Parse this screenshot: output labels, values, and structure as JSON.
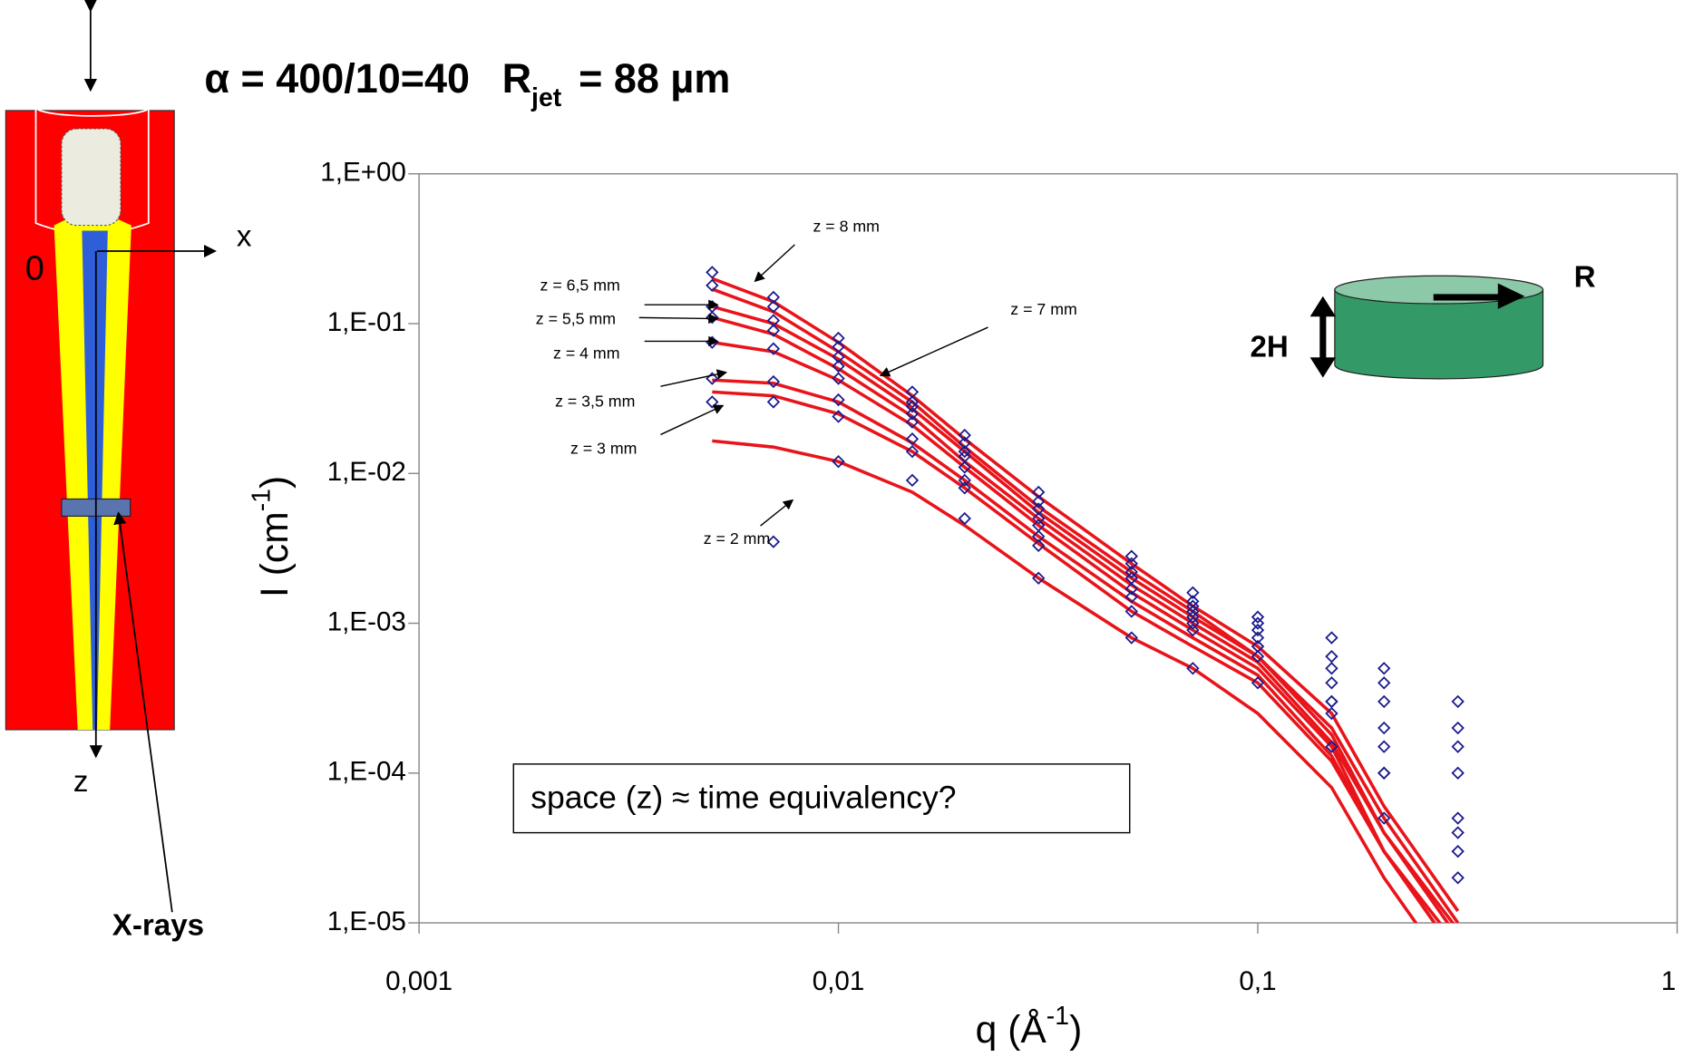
{
  "header": {
    "alpha": "α = 400/10=40",
    "r_symbol": "R",
    "r_subscript": "jet",
    "r_value": "= 88 µm"
  },
  "diagram": {
    "origin": "0",
    "x_axis": "x",
    "z_axis": "z",
    "beam": "X-rays"
  },
  "inset": {
    "radius": "R",
    "height": "2H"
  },
  "chart_data": {
    "type": "scatter",
    "y_label": {
      "text": "I (cm",
      "sup": "-1",
      "close": ")"
    },
    "x_label": {
      "text": "q (Å",
      "sup": "-1",
      "close": ")"
    },
    "note": "space (z) ≈ time equivalency?",
    "xscale": "log",
    "yscale": "log",
    "xlim": [
      0.001,
      1
    ],
    "ylim": [
      1e-05,
      1
    ],
    "xticks": [
      {
        "value": 0.001,
        "label": "0,001"
      },
      {
        "value": 0.01,
        "label": "0,01"
      },
      {
        "value": 0.1,
        "label": "0,1"
      },
      1
    ],
    "yticks": [
      {
        "value": 1e-05,
        "label": "1,E-05"
      },
      {
        "value": 0.0001,
        "label": "1,E-04"
      },
      {
        "value": 0.001,
        "label": "1,E-03"
      },
      {
        "value": 0.01,
        "label": "1,E-02"
      },
      {
        "value": 0.1,
        "label": "1,E-01"
      },
      {
        "value": 1,
        "label": "1,E+00"
      }
    ],
    "x": [
      0.005,
      0.007,
      0.01,
      0.015,
      0.02,
      0.03,
      0.05,
      0.07,
      0.1,
      0.15,
      0.2,
      0.3
    ],
    "data_color": "#1a1a8c",
    "fit_color": "#e8141a",
    "series": [
      {
        "name": "z = 8  mm",
        "values": [
          0.22,
          0.15,
          0.08,
          0.035,
          0.018,
          0.0075,
          0.0028,
          0.0016,
          0.0011,
          0.0008,
          0.0005,
          0.0003
        ],
        "fit": [
          0.2,
          0.14,
          0.075,
          0.033,
          0.017,
          0.007,
          0.0025,
          0.0013,
          0.0007,
          0.00025,
          6e-05,
          1.2e-05
        ]
      },
      {
        "name": "z = 7  mm",
        "values": [
          0.18,
          0.13,
          0.07,
          0.03,
          0.016,
          0.0065,
          0.0025,
          0.0014,
          0.001,
          0.0006,
          0.0004,
          0.0002
        ],
        "fit": [
          0.17,
          0.12,
          0.065,
          0.03,
          0.015,
          0.006,
          0.0022,
          0.0012,
          0.0006,
          0.0002,
          5e-05,
          1e-05
        ]
      },
      {
        "name": "z = 6,5  mm",
        "values": [
          0.13,
          0.105,
          0.06,
          0.028,
          0.014,
          0.0058,
          0.0022,
          0.0013,
          0.0009,
          0.0005,
          0.0003,
          0.00015
        ],
        "fit": [
          0.13,
          0.1,
          0.058,
          0.027,
          0.014,
          0.0055,
          0.002,
          0.0011,
          0.0006,
          0.00018,
          4e-05,
          9e-06
        ]
      },
      {
        "name": "z = 5,5 mm",
        "values": [
          0.11,
          0.09,
          0.052,
          0.025,
          0.013,
          0.005,
          0.002,
          0.0012,
          0.0008,
          0.0004,
          0.0002,
          0.0001
        ],
        "fit": [
          0.11,
          0.085,
          0.05,
          0.024,
          0.012,
          0.005,
          0.0018,
          0.001,
          0.00055,
          0.00016,
          4e-05,
          8e-06
        ]
      },
      {
        "name": "z = 4 mm",
        "values": [
          0.075,
          0.068,
          0.043,
          0.022,
          0.011,
          0.0045,
          0.0017,
          0.0011,
          0.0007,
          0.0003,
          0.00015,
          5e-05
        ],
        "fit": [
          0.075,
          0.065,
          0.042,
          0.021,
          0.011,
          0.0045,
          0.0016,
          0.0009,
          0.0005,
          0.00015,
          3e-05,
          7e-06
        ]
      },
      {
        "name": "z = 3,5 mm",
        "values": [
          0.043,
          0.041,
          0.031,
          0.017,
          0.009,
          0.0038,
          0.0015,
          0.001,
          0.0007,
          0.0003,
          0.0001,
          4e-05
        ],
        "fit": [
          0.042,
          0.04,
          0.03,
          0.016,
          0.009,
          0.0038,
          0.0014,
          0.0008,
          0.00045,
          0.00013,
          3e-05,
          6e-06
        ]
      },
      {
        "name": "z = 3 mm",
        "values": [
          0.03,
          0.03,
          0.024,
          0.014,
          0.008,
          0.0033,
          0.0012,
          0.0009,
          0.0006,
          0.00025,
          0.0001,
          3e-05
        ],
        "fit": [
          0.035,
          0.033,
          0.025,
          0.014,
          0.008,
          0.0034,
          0.0012,
          0.0007,
          0.0004,
          0.00012,
          3e-05,
          6e-06
        ]
      },
      {
        "name": "z = 2 mm",
        "values": [
          null,
          0.0035,
          0.012,
          0.009,
          0.005,
          0.002,
          0.0008,
          0.0005,
          0.0004,
          0.00015,
          5e-05,
          2e-05
        ],
        "fit": [
          0.0165,
          0.015,
          0.012,
          0.0075,
          0.0045,
          0.002,
          0.0008,
          0.0005,
          0.00025,
          8e-05,
          2e-05,
          4e-06
        ]
      }
    ]
  }
}
